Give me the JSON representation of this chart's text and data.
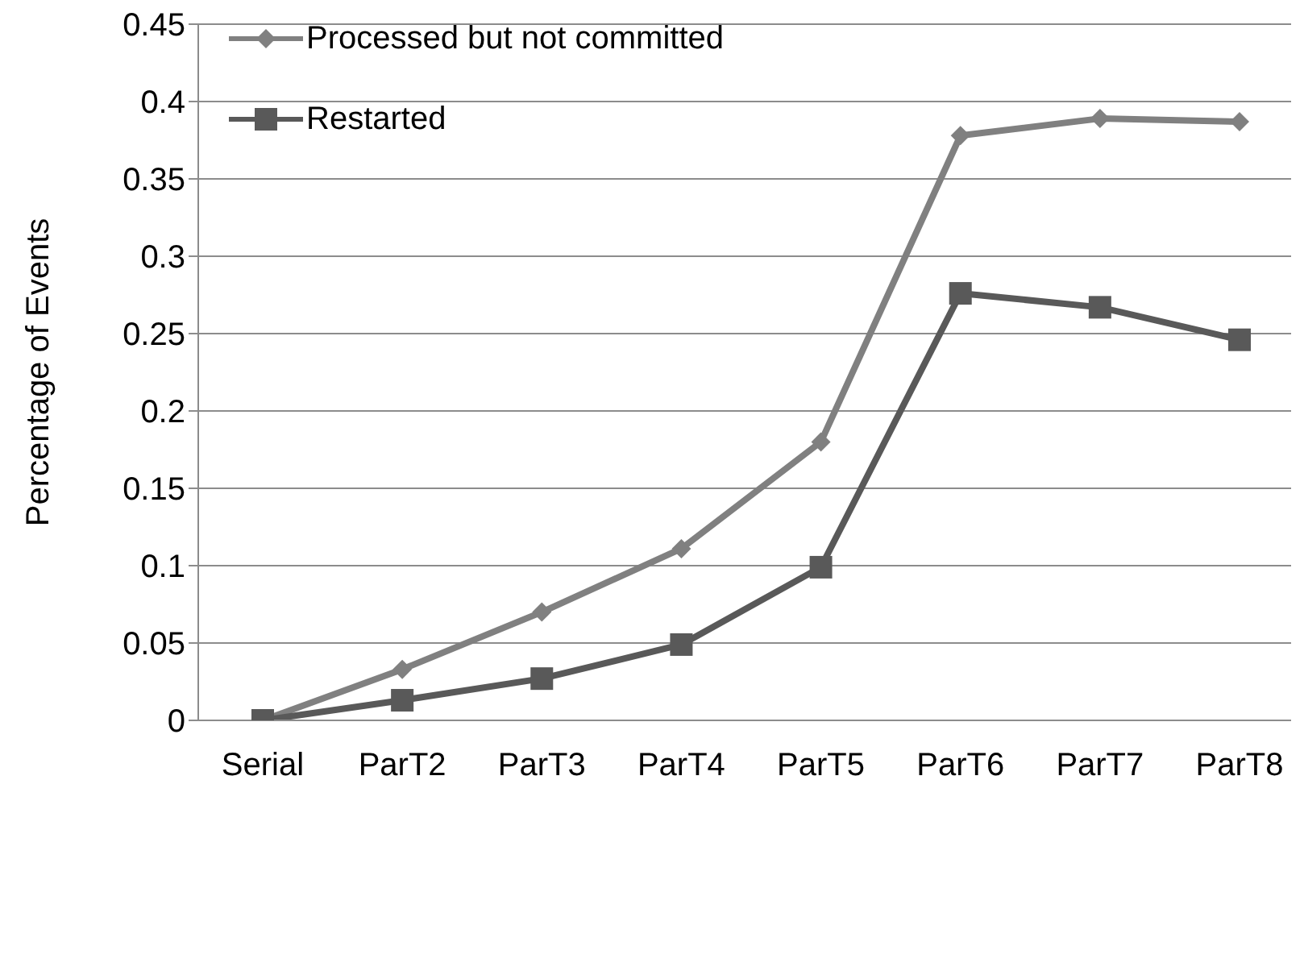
{
  "chart_data": {
    "type": "line",
    "ylabel": "Percentage of Events",
    "categories": [
      "Serial",
      "ParT2",
      "ParT3",
      "ParT4",
      "ParT5",
      "ParT6",
      "ParT7",
      "ParT8"
    ],
    "series": [
      {
        "name": "Processed but not committed",
        "color": "#808080",
        "marker": "diamond",
        "values": [
          0,
          0.033,
          0.07,
          0.111,
          0.18,
          0.378,
          0.389,
          0.387
        ]
      },
      {
        "name": "Restarted",
        "color": "#595959",
        "marker": "square",
        "values": [
          0,
          0.013,
          0.027,
          0.049,
          0.099,
          0.276,
          0.267,
          0.246
        ]
      }
    ],
    "ylim": [
      0,
      0.45
    ],
    "yticks": [
      0,
      0.05,
      0.1,
      0.15,
      0.2,
      0.25,
      0.3,
      0.35,
      0.4,
      0.45
    ],
    "grid": "y",
    "legend": "top left",
    "line_style": "solid"
  }
}
